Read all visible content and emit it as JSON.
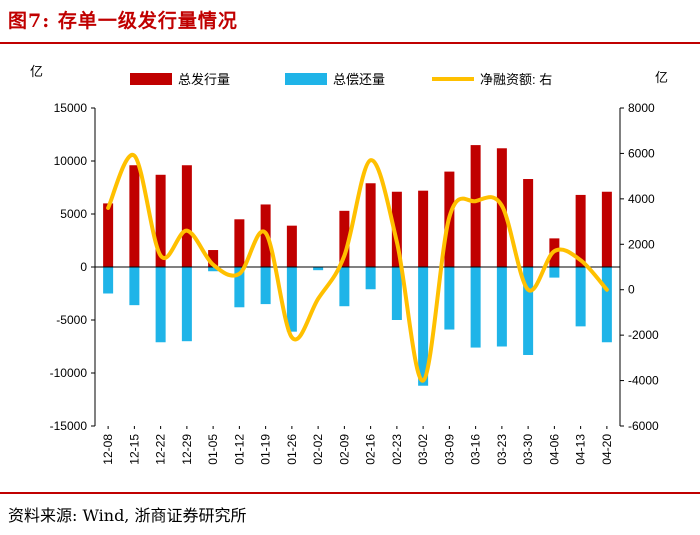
{
  "header": {
    "title": "图7:   存单一级发行量情况"
  },
  "footer": {
    "source": "资料来源: Wind, 浙商证券研究所"
  },
  "chart_data": {
    "type": "bar",
    "categories": [
      "12-08",
      "12-15",
      "12-22",
      "12-29",
      "01-05",
      "01-12",
      "01-19",
      "01-26",
      "02-02",
      "02-09",
      "02-16",
      "02-23",
      "03-02",
      "03-09",
      "03-16",
      "03-23",
      "03-30",
      "04-06",
      "04-13",
      "04-20"
    ],
    "series": [
      {
        "name": "总发行量",
        "axis": "left",
        "color": "#c00000",
        "values": [
          6000,
          9600,
          8700,
          9600,
          1600,
          4500,
          5900,
          3900,
          0,
          5300,
          7900,
          7100,
          7200,
          9000,
          11500,
          11200,
          8300,
          2700,
          6800,
          7100
        ]
      },
      {
        "name": "总偿还量",
        "axis": "left",
        "color": "#1fb4e8",
        "values": [
          -2500,
          -3600,
          -7100,
          -7000,
          -400,
          -3800,
          -3500,
          -6100,
          -300,
          -3700,
          -2100,
          -5000,
          -11200,
          -5900,
          -7600,
          -7500,
          -8300,
          -1000,
          -5600,
          -7100
        ]
      },
      {
        "name": "净融资额: 右",
        "axis": "right",
        "type": "line",
        "color": "#ffc000",
        "values": [
          3600,
          5900,
          1500,
          2600,
          1100,
          700,
          2500,
          -2100,
          -400,
          1500,
          5700,
          2100,
          -4000,
          3200,
          3900,
          3700,
          0,
          1700,
          1300,
          0
        ]
      }
    ],
    "left_axis": {
      "label": "亿",
      "ylim": [
        -15000,
        15000
      ],
      "ticks": [
        "15000",
        "10000",
        "5000",
        "0",
        "-5000",
        "-10000",
        "-15000"
      ]
    },
    "right_axis": {
      "label": "亿",
      "ylim": [
        -6000,
        8000
      ],
      "ticks": [
        "8000",
        "6000",
        "4000",
        "2000",
        "0",
        "-2000",
        "-4000",
        "-6000"
      ]
    },
    "legend": [
      "总发行量",
      "总偿还量",
      "净融资额: 右"
    ],
    "legend_position": "top"
  }
}
